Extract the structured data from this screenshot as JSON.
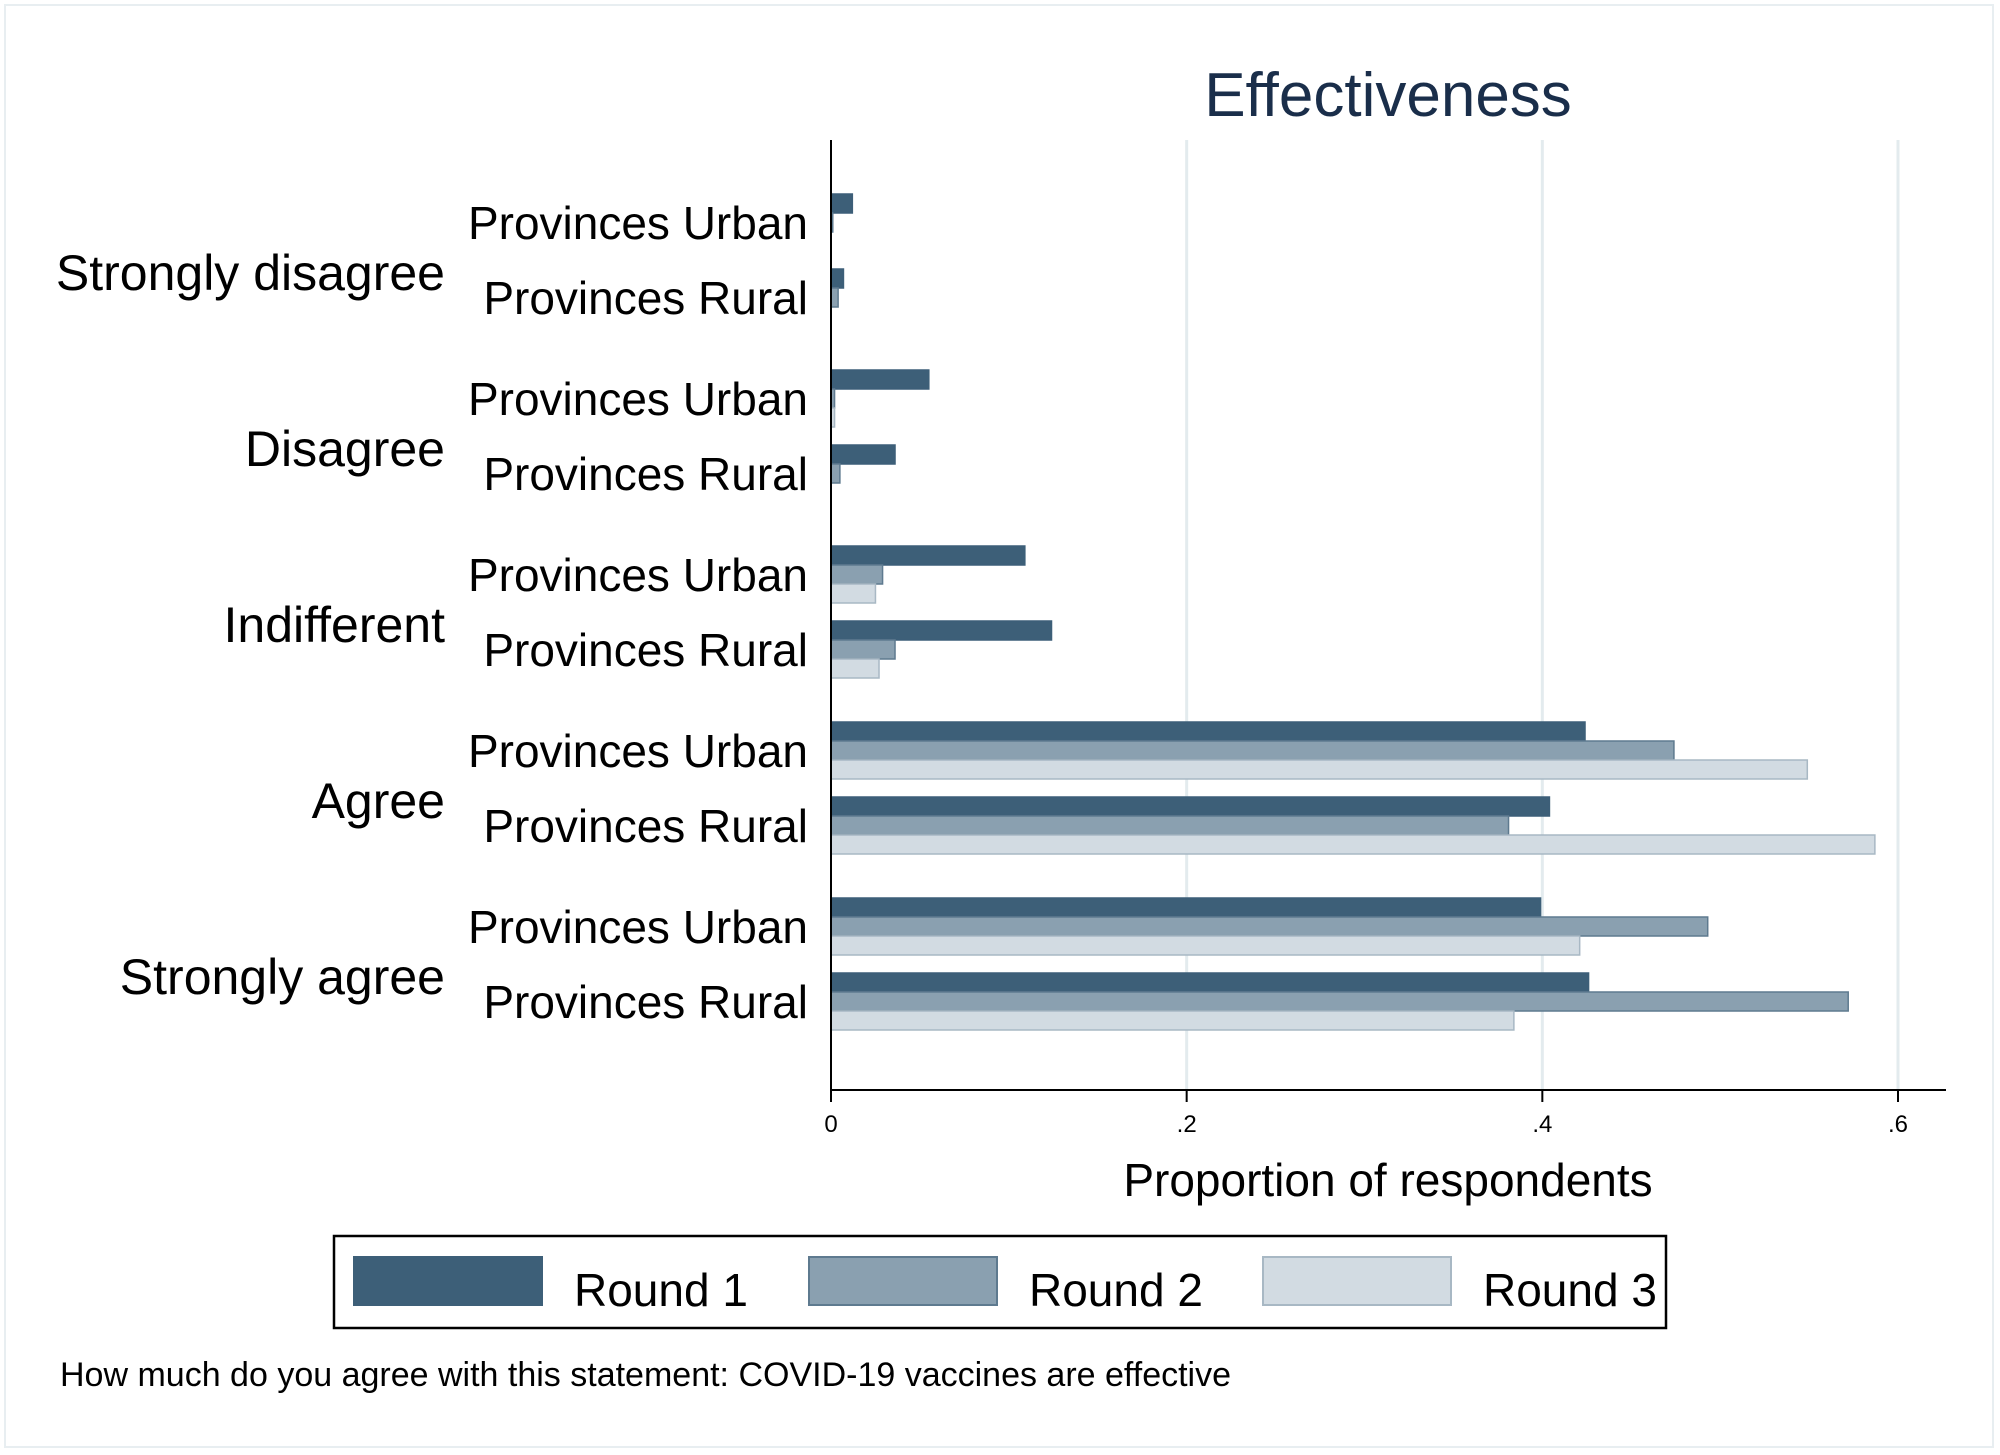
{
  "chart_data": {
    "type": "bar",
    "orientation": "horizontal",
    "title": "Effectiveness",
    "xlabel": "Proportion of respondents",
    "note": "How much do you agree with this statement: COVID-19 vaccines are effective",
    "xlim": [
      0,
      0.63
    ],
    "xticks": [
      0,
      0.2,
      0.4,
      0.6
    ],
    "xtick_labels": [
      "0",
      ".2",
      ".4",
      ".6"
    ],
    "grid": true,
    "legend_position": "bottom",
    "colors": {
      "Round 1": "#3d5f78",
      "Round 2": "#8aa0b0",
      "Round 3": "#d2dbe2"
    },
    "series_names": [
      "Round 1",
      "Round 2",
      "Round 3"
    ],
    "categories": [
      {
        "label": "Strongly disagree",
        "groups": [
          {
            "label": "Provinces Urban",
            "values": [
              0.012,
              0.001,
              0.0
            ]
          },
          {
            "label": "Provinces Rural",
            "values": [
              0.007,
              0.004,
              0.0
            ]
          }
        ]
      },
      {
        "label": "Disagree",
        "groups": [
          {
            "label": "Provinces Urban",
            "values": [
              0.055,
              0.002,
              0.002
            ]
          },
          {
            "label": "Provinces Rural",
            "values": [
              0.036,
              0.005,
              0.0
            ]
          }
        ]
      },
      {
        "label": "Indifferent",
        "groups": [
          {
            "label": "Provinces Urban",
            "values": [
              0.109,
              0.029,
              0.025
            ]
          },
          {
            "label": "Provinces Rural",
            "values": [
              0.124,
              0.036,
              0.027
            ]
          }
        ]
      },
      {
        "label": "Agree",
        "groups": [
          {
            "label": "Provinces Urban",
            "values": [
              0.424,
              0.474,
              0.549
            ]
          },
          {
            "label": "Provinces Rural",
            "values": [
              0.404,
              0.381,
              0.587
            ]
          }
        ]
      },
      {
        "label": "Strongly agree",
        "groups": [
          {
            "label": "Provinces Urban",
            "values": [
              0.399,
              0.493,
              0.421
            ]
          },
          {
            "label": "Provinces Rural",
            "values": [
              0.426,
              0.572,
              0.384
            ]
          }
        ]
      }
    ]
  }
}
